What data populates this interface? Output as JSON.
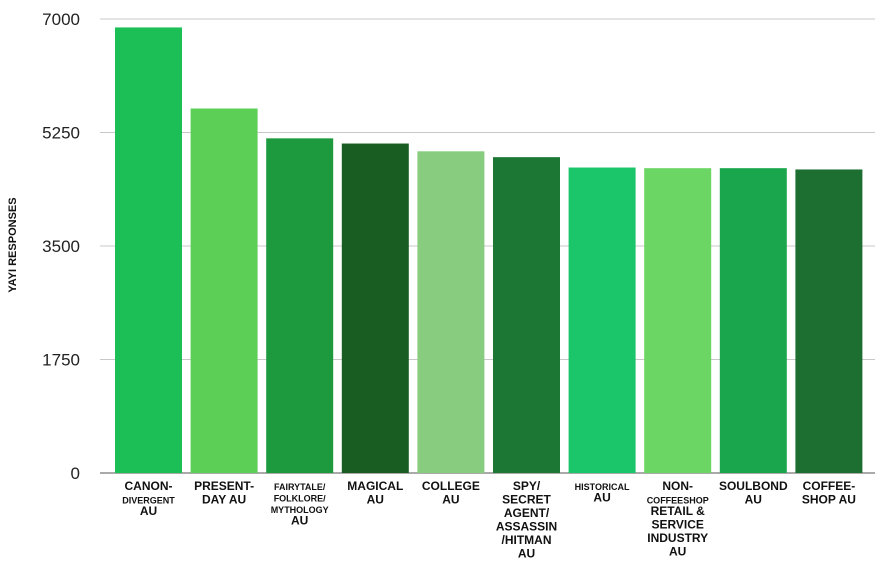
{
  "chart_data": {
    "type": "bar",
    "title": "",
    "xlabel": "",
    "ylabel": "YAYI RESPONSES",
    "ylim": [
      0,
      7000
    ],
    "yticks": [
      0,
      1750,
      3500,
      5250,
      7000
    ],
    "ytick_labels": [
      "0",
      "1750",
      "3500",
      "5250",
      "7000"
    ],
    "grid": true,
    "categories": [
      "CANON-DIVERGENT AU",
      "PRESENT-DAY AU",
      "FAIRYTALE/FOLKLORE/MYTHOLOGY AU",
      "MAGICAL AU",
      "COLLEGE AU",
      "SPY/SECRET AGENT/ASSASSIN/HITMAN AU",
      "HISTORICAL AU",
      "NON-COFFEESHOP RETAIL & SERVICE INDUSTRY AU",
      "SOULBOND AU",
      "COFFEE-SHOP AU"
    ],
    "category_label_lines": [
      [
        {
          "t": "CANON-",
          "s": 1
        },
        {
          "t": "DIVERGENT",
          "s": 0
        },
        {
          "t": "AU",
          "s": 1
        }
      ],
      [
        {
          "t": "PRESENT-",
          "s": 1
        },
        {
          "t": "DAY AU",
          "s": 1
        }
      ],
      [
        {
          "t": "FAIRYTALE/",
          "s": 0
        },
        {
          "t": "FOLKLORE/",
          "s": 0
        },
        {
          "t": "MYTHOLOGY",
          "s": 0
        },
        {
          "t": "AU",
          "s": 1
        }
      ],
      [
        {
          "t": "MAGICAL",
          "s": 1
        },
        {
          "t": "AU",
          "s": 1
        }
      ],
      [
        {
          "t": "COLLEGE",
          "s": 1
        },
        {
          "t": "AU",
          "s": 1
        }
      ],
      [
        {
          "t": "SPY/",
          "s": 1
        },
        {
          "t": "SECRET",
          "s": 1
        },
        {
          "t": "AGENT/",
          "s": 1
        },
        {
          "t": "ASSASSIN",
          "s": 1
        },
        {
          "t": "/HITMAN",
          "s": 1
        },
        {
          "t": "AU",
          "s": 1
        }
      ],
      [
        {
          "t": "HISTORICAL",
          "s": 0
        },
        {
          "t": "AU",
          "s": 1
        }
      ],
      [
        {
          "t": "NON-",
          "s": 1
        },
        {
          "t": "COFFEESHOP",
          "s": 0
        },
        {
          "t": "RETAIL &",
          "s": 1
        },
        {
          "t": "SERVICE",
          "s": 1
        },
        {
          "t": "INDUSTRY",
          "s": 1
        },
        {
          "t": "AU",
          "s": 1
        }
      ],
      [
        {
          "t": "SOULBOND",
          "s": 1
        },
        {
          "t": "AU",
          "s": 1
        }
      ],
      [
        {
          "t": "COFFEE-",
          "s": 1
        },
        {
          "t": "SHOP AU",
          "s": 1
        }
      ]
    ],
    "values": [
      6870,
      5620,
      5160,
      5080,
      4960,
      4870,
      4710,
      4700,
      4700,
      4680
    ],
    "colors": [
      "#1cbf55",
      "#5ccf57",
      "#1e9a3e",
      "#1a5d22",
      "#88cc7f",
      "#1d7734",
      "#1bc56a",
      "#6cd664",
      "#1aa64d",
      "#1c6f31"
    ]
  }
}
